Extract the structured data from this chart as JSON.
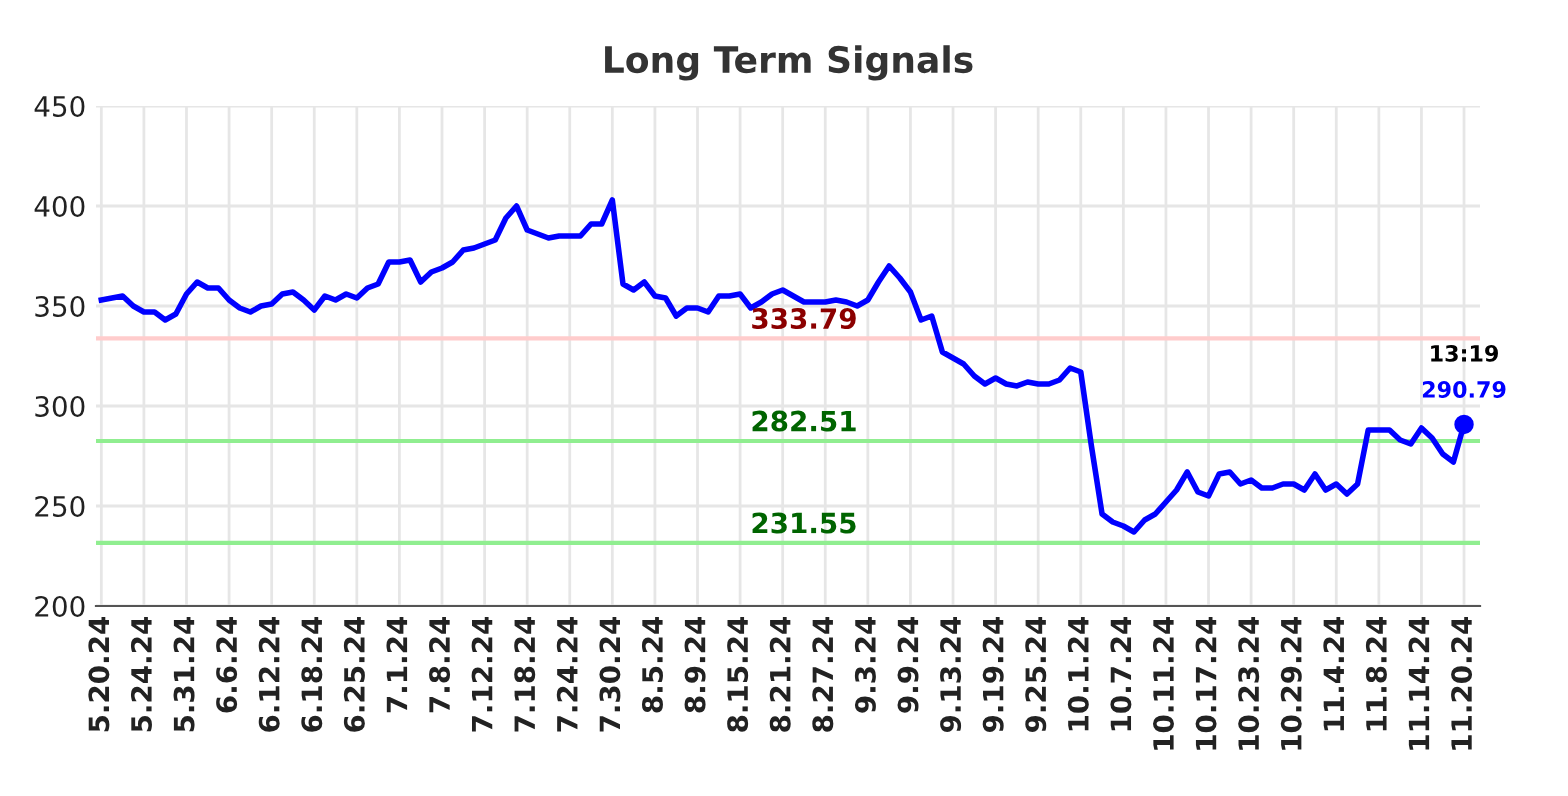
{
  "chart_data": {
    "type": "line",
    "title": "Long Term Signals",
    "categories": [
      "5.20.24",
      null,
      null,
      null,
      "5.24.24",
      null,
      null,
      null,
      "5.31.24",
      null,
      null,
      null,
      "6.6.24",
      null,
      null,
      null,
      "6.12.24",
      null,
      null,
      null,
      "6.18.24",
      null,
      null,
      null,
      "6.25.24",
      null,
      null,
      null,
      "7.1.24",
      null,
      null,
      null,
      "7.8.24",
      null,
      null,
      null,
      "7.12.24",
      null,
      null,
      null,
      "7.18.24",
      null,
      null,
      null,
      "7.24.24",
      null,
      null,
      null,
      "7.30.24",
      null,
      null,
      null,
      "8.5.24",
      null,
      null,
      null,
      "8.9.24",
      null,
      null,
      null,
      "8.15.24",
      null,
      null,
      null,
      "8.21.24",
      null,
      null,
      null,
      "8.27.24",
      null,
      null,
      null,
      "9.3.24",
      null,
      null,
      null,
      "9.9.24",
      null,
      null,
      null,
      "9.13.24",
      null,
      null,
      null,
      "9.19.24",
      null,
      null,
      null,
      "9.25.24",
      null,
      null,
      null,
      "10.1.24",
      null,
      null,
      null,
      "10.7.24",
      null,
      null,
      null,
      "10.11.24",
      null,
      null,
      null,
      "10.17.24",
      null,
      null,
      null,
      "10.23.24",
      null,
      null,
      null,
      "10.29.24",
      null,
      null,
      null,
      "11.4.24",
      null,
      null,
      null,
      "11.8.24",
      null,
      null,
      null,
      "11.14.24",
      null,
      null,
      null,
      "11.20.24"
    ],
    "series": [
      {
        "color": "#0000ff",
        "values": [
          353,
          354,
          355,
          350,
          347,
          347,
          343,
          346,
          356,
          362,
          359,
          359,
          353,
          349,
          347,
          350,
          351,
          356,
          357,
          353,
          348,
          355,
          353,
          356,
          354,
          359,
          361,
          372,
          372,
          373,
          362,
          367,
          369,
          372,
          378,
          379,
          381,
          383,
          394,
          400,
          388,
          386,
          384,
          385,
          385,
          385,
          391,
          391,
          403,
          361,
          358,
          362,
          355,
          354,
          345,
          349,
          349,
          347,
          355,
          355,
          356,
          349,
          352,
          356,
          358,
          355,
          352,
          352,
          352,
          353,
          352,
          350,
          353,
          362,
          370,
          364,
          357,
          343,
          345,
          327,
          324,
          321,
          315,
          311,
          314,
          311,
          310,
          312,
          311,
          311,
          313,
          319,
          317,
          280,
          246,
          242,
          240,
          237,
          243,
          246,
          252,
          258,
          267,
          257,
          255,
          266,
          267,
          261,
          263,
          259,
          259,
          261,
          261,
          258,
          266,
          258,
          261,
          256,
          261,
          288,
          288,
          288,
          283,
          281,
          289,
          284,
          276,
          272,
          290.79
        ]
      }
    ],
    "ylim": [
      200,
      450
    ],
    "yticks": [
      200,
      250,
      300,
      350,
      400,
      450
    ],
    "grid": true,
    "ref_lines": [
      {
        "axis": "y",
        "value": 333.79,
        "label": "333.79",
        "color": "#ffcccc"
      },
      {
        "axis": "y",
        "value": 282.51,
        "label": "282.51",
        "color": "#90ee90"
      },
      {
        "axis": "y",
        "value": 231.55,
        "label": "231.55",
        "color": "#90ee90"
      }
    ],
    "annotations": [
      {
        "text": "13:19",
        "x": "11.20.24",
        "y": 290.79
      },
      {
        "text": "290.79",
        "x": "11.20.24",
        "y": 290.79
      }
    ]
  }
}
